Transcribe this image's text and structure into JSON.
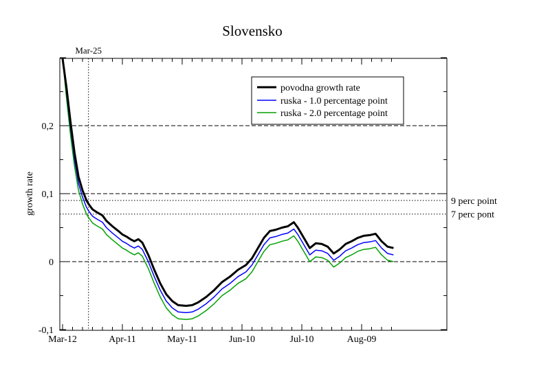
{
  "chart_data": {
    "type": "line",
    "title": "Slovensko",
    "xlabel": "",
    "ylabel": "growth rate",
    "x_range_days": [
      0,
      166
    ],
    "ylim": [
      -0.1,
      0.3
    ],
    "x_ticks": [
      {
        "day": 0,
        "label": "Mar-12"
      },
      {
        "day": 30,
        "label": "Apr-11"
      },
      {
        "day": 60,
        "label": "May-11"
      },
      {
        "day": 90,
        "label": "Jun-10"
      },
      {
        "day": 120,
        "label": "Jul-10"
      },
      {
        "day": 150,
        "label": "Aug-09"
      }
    ],
    "y_ticks": [
      {
        "value": -0.1,
        "label": "-0,1"
      },
      {
        "value": 0,
        "label": "0"
      },
      {
        "value": 0.1,
        "label": "0,1"
      },
      {
        "value": 0.2,
        "label": "0,2"
      }
    ],
    "hlines_dashed": [
      0,
      0.1,
      0.2
    ],
    "reference_lines": [
      {
        "value": 0.09,
        "label": "9 perc point"
      },
      {
        "value": 0.07,
        "label": "7 perc pont"
      }
    ],
    "vline": {
      "day": 13,
      "label": "Mar-25"
    },
    "legend_position": "top-right",
    "series": [
      {
        "name": "povodna growth rate",
        "color": "#000000",
        "x": [
          0,
          2,
          4,
          6,
          8,
          10,
          12,
          13,
          15,
          17,
          20,
          22,
          25,
          28,
          30,
          32,
          34,
          36,
          38,
          40,
          43,
          46,
          49,
          52,
          55,
          58,
          62,
          65,
          68,
          72,
          76,
          80,
          84,
          88,
          92,
          95,
          98,
          101,
          104,
          107,
          110,
          113,
          116,
          118,
          120,
          122,
          124,
          127,
          130,
          133,
          136,
          139,
          142,
          145,
          148,
          151,
          154,
          157,
          160,
          163,
          166
        ],
        "y": [
          0.3,
          0.255,
          0.205,
          0.16,
          0.125,
          0.105,
          0.09,
          0.085,
          0.077,
          0.073,
          0.068,
          0.06,
          0.052,
          0.045,
          0.04,
          0.037,
          0.033,
          0.03,
          0.033,
          0.028,
          0.01,
          -0.012,
          -0.032,
          -0.048,
          -0.058,
          -0.064,
          -0.065,
          -0.064,
          -0.06,
          -0.052,
          -0.042,
          -0.03,
          -0.022,
          -0.012,
          -0.005,
          0.005,
          0.02,
          0.035,
          0.045,
          0.047,
          0.05,
          0.052,
          0.058,
          0.05,
          0.04,
          0.03,
          0.02,
          0.027,
          0.026,
          0.022,
          0.012,
          0.018,
          0.026,
          0.03,
          0.035,
          0.038,
          0.039,
          0.041,
          0.03,
          0.022,
          0.02
        ]
      },
      {
        "name": "ruska - 1.0 percentage point",
        "color": "#0000ff",
        "x": [
          0,
          2,
          4,
          6,
          8,
          10,
          12,
          13,
          15,
          17,
          20,
          22,
          25,
          28,
          30,
          32,
          34,
          36,
          38,
          40,
          43,
          46,
          49,
          52,
          55,
          58,
          62,
          65,
          68,
          72,
          76,
          80,
          84,
          88,
          92,
          95,
          98,
          101,
          104,
          107,
          110,
          113,
          116,
          118,
          120,
          122,
          124,
          127,
          130,
          133,
          136,
          139,
          142,
          145,
          148,
          151,
          154,
          157,
          160,
          163,
          166
        ],
        "y": [
          0.3,
          0.248,
          0.196,
          0.15,
          0.115,
          0.095,
          0.08,
          0.075,
          0.067,
          0.063,
          0.058,
          0.05,
          0.042,
          0.035,
          0.03,
          0.027,
          0.023,
          0.02,
          0.023,
          0.018,
          0.0,
          -0.022,
          -0.042,
          -0.058,
          -0.068,
          -0.074,
          -0.075,
          -0.074,
          -0.07,
          -0.062,
          -0.052,
          -0.04,
          -0.032,
          -0.022,
          -0.015,
          -0.005,
          0.01,
          0.025,
          0.035,
          0.037,
          0.04,
          0.042,
          0.048,
          0.04,
          0.03,
          0.02,
          0.01,
          0.017,
          0.016,
          0.012,
          0.002,
          0.008,
          0.016,
          0.02,
          0.025,
          0.028,
          0.029,
          0.031,
          0.02,
          0.012,
          0.01
        ]
      },
      {
        "name": "ruska - 2.0 percentage point",
        "color": "#00a000",
        "x": [
          0,
          2,
          4,
          6,
          8,
          10,
          12,
          13,
          15,
          17,
          20,
          22,
          25,
          28,
          30,
          32,
          34,
          36,
          38,
          40,
          43,
          46,
          49,
          52,
          55,
          58,
          62,
          65,
          68,
          72,
          76,
          80,
          84,
          88,
          92,
          95,
          98,
          101,
          104,
          107,
          110,
          113,
          116,
          118,
          120,
          122,
          124,
          127,
          130,
          133,
          136,
          139,
          142,
          145,
          148,
          151,
          154,
          157,
          160,
          163,
          166
        ],
        "y": [
          0.3,
          0.24,
          0.186,
          0.14,
          0.105,
          0.085,
          0.07,
          0.065,
          0.057,
          0.053,
          0.048,
          0.04,
          0.032,
          0.025,
          0.02,
          0.017,
          0.013,
          0.01,
          0.013,
          0.008,
          -0.01,
          -0.032,
          -0.052,
          -0.068,
          -0.078,
          -0.084,
          -0.085,
          -0.084,
          -0.08,
          -0.072,
          -0.062,
          -0.05,
          -0.042,
          -0.032,
          -0.025,
          -0.015,
          0.0,
          0.015,
          0.025,
          0.027,
          0.03,
          0.032,
          0.038,
          0.03,
          0.02,
          0.01,
          0.0,
          0.007,
          0.006,
          0.002,
          -0.008,
          -0.002,
          0.006,
          0.01,
          0.015,
          0.018,
          0.019,
          0.021,
          0.01,
          0.002,
          0.0
        ]
      }
    ]
  }
}
